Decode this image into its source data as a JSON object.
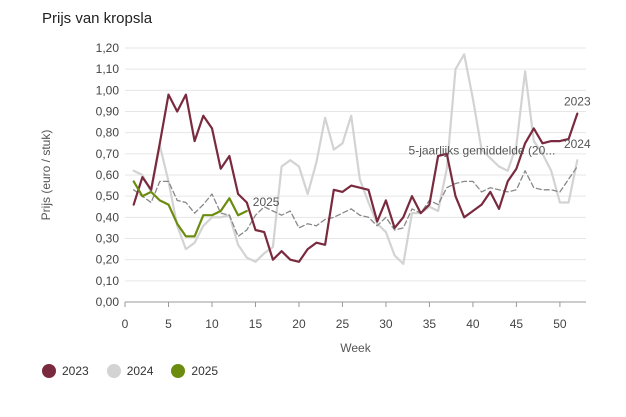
{
  "chart_data": {
    "type": "line",
    "title": "Prijs van kropsla",
    "xlabel": "Week",
    "ylabel": "Prijs (euro / stuk)",
    "xlim": [
      0,
      53
    ],
    "ylim": [
      0,
      1.2
    ],
    "x_ticks": [
      0,
      5,
      10,
      15,
      20,
      25,
      30,
      35,
      40,
      45,
      50
    ],
    "y_ticks": [
      "0,00",
      "0,10",
      "0,20",
      "0,30",
      "0,40",
      "0,50",
      "0,60",
      "0,70",
      "0,80",
      "0,90",
      "1,00",
      "1,10",
      "1,20"
    ],
    "grid": true,
    "legend_position": "bottom-left",
    "series": [
      {
        "name": "2023",
        "color": "#7a2a3e",
        "end_label": "2023",
        "x": [
          1,
          2,
          3,
          4,
          5,
          6,
          7,
          8,
          9,
          10,
          11,
          12,
          13,
          14,
          15,
          16,
          17,
          18,
          19,
          20,
          21,
          22,
          23,
          24,
          25,
          26,
          27,
          28,
          29,
          30,
          31,
          32,
          33,
          34,
          35,
          36,
          37,
          38,
          39,
          40,
          41,
          42,
          43,
          44,
          45,
          46,
          47,
          48,
          49,
          50,
          51,
          52
        ],
        "values": [
          0.46,
          0.59,
          0.53,
          0.75,
          0.98,
          0.9,
          0.98,
          0.76,
          0.88,
          0.82,
          0.63,
          0.69,
          0.51,
          0.47,
          0.34,
          0.33,
          0.2,
          0.24,
          0.2,
          0.19,
          0.25,
          0.28,
          0.27,
          0.53,
          0.52,
          0.55,
          0.54,
          0.53,
          0.38,
          0.48,
          0.35,
          0.4,
          0.5,
          0.42,
          0.46,
          0.69,
          0.7,
          0.5,
          0.4,
          0.43,
          0.46,
          0.52,
          0.44,
          0.57,
          0.63,
          0.75,
          0.82,
          0.75,
          0.76,
          0.76,
          0.77,
          0.89
        ]
      },
      {
        "name": "2024",
        "color": "#d3d3d3",
        "end_label": "2024",
        "x": [
          1,
          2,
          3,
          4,
          5,
          6,
          7,
          8,
          9,
          10,
          11,
          12,
          13,
          14,
          15,
          16,
          17,
          18,
          19,
          20,
          21,
          22,
          23,
          24,
          25,
          26,
          27,
          28,
          29,
          30,
          31,
          32,
          33,
          34,
          35,
          36,
          37,
          38,
          39,
          40,
          41,
          42,
          43,
          44,
          45,
          46,
          47,
          48,
          49,
          50,
          51,
          52
        ],
        "values": [
          0.62,
          0.6,
          0.52,
          0.74,
          0.57,
          0.36,
          0.25,
          0.28,
          0.36,
          0.4,
          0.4,
          0.41,
          0.27,
          0.21,
          0.19,
          0.23,
          0.26,
          0.64,
          0.67,
          0.64,
          0.51,
          0.66,
          0.87,
          0.72,
          0.75,
          0.88,
          0.58,
          0.47,
          0.37,
          0.33,
          0.22,
          0.18,
          0.42,
          0.42,
          0.45,
          0.43,
          0.63,
          1.1,
          1.17,
          0.96,
          0.72,
          0.68,
          0.64,
          0.62,
          0.74,
          1.09,
          0.76,
          0.7,
          0.62,
          0.47,
          0.47,
          0.67
        ]
      },
      {
        "name": "2025",
        "color": "#6b8c0f",
        "end_label": "2025",
        "x": [
          1,
          2,
          3,
          4,
          5,
          6,
          7,
          8,
          9,
          10,
          11,
          12,
          13,
          14
        ],
        "values": [
          0.57,
          0.5,
          0.52,
          0.48,
          0.46,
          0.37,
          0.31,
          0.31,
          0.41,
          0.41,
          0.43,
          0.49,
          0.41,
          0.43
        ]
      },
      {
        "name": "5-jaarlijks gemiddelde (20...",
        "color": "#888888",
        "dashed": true,
        "end_label": "5-jaarlijks gemiddelde (20...",
        "x": [
          1,
          2,
          3,
          4,
          5,
          6,
          7,
          8,
          9,
          10,
          11,
          12,
          13,
          14,
          15,
          16,
          17,
          18,
          19,
          20,
          21,
          22,
          23,
          24,
          25,
          26,
          27,
          28,
          29,
          30,
          31,
          32,
          33,
          34,
          35,
          36,
          37,
          38,
          39,
          40,
          41,
          42,
          43,
          44,
          45,
          46,
          47,
          48,
          49,
          50,
          51,
          52
        ],
        "values": [
          0.53,
          0.5,
          0.47,
          0.57,
          0.57,
          0.48,
          0.47,
          0.42,
          0.46,
          0.51,
          0.42,
          0.41,
          0.31,
          0.34,
          0.41,
          0.45,
          0.43,
          0.41,
          0.43,
          0.35,
          0.37,
          0.36,
          0.39,
          0.4,
          0.42,
          0.44,
          0.41,
          0.4,
          0.36,
          0.4,
          0.34,
          0.35,
          0.44,
          0.42,
          0.48,
          0.46,
          0.54,
          0.56,
          0.57,
          0.57,
          0.52,
          0.54,
          0.53,
          0.52,
          0.53,
          0.62,
          0.54,
          0.53,
          0.53,
          0.52,
          0.58,
          0.64
        ]
      }
    ]
  },
  "legend": [
    {
      "label": "2023",
      "color": "#7a2a3e"
    },
    {
      "label": "2024",
      "color": "#d3d3d3"
    },
    {
      "label": "2025",
      "color": "#6b8c0f"
    }
  ]
}
